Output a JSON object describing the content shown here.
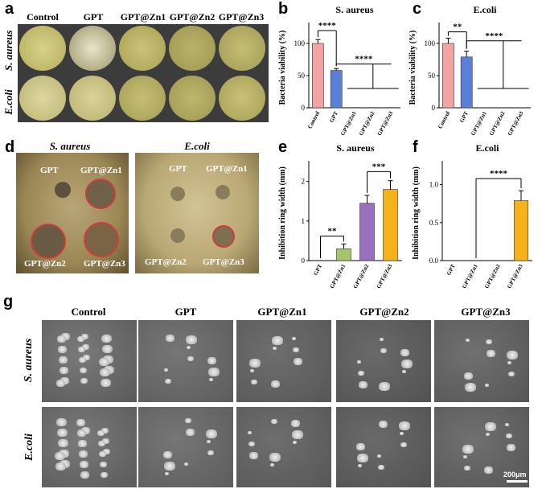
{
  "panel_letters": {
    "a": "a",
    "b": "b",
    "c": "c",
    "d": "d",
    "e": "e",
    "f": "f",
    "g": "g"
  },
  "panel_a": {
    "columns": [
      "Control",
      "GPT",
      "GPT@Zn1",
      "GPT@Zn2",
      "GPT@Zn3"
    ],
    "rows": [
      "S. aureus",
      "E.coli"
    ]
  },
  "panel_d": {
    "left_title": "S. aureus",
    "right_title": "E.coli",
    "left_labels": [
      "GPT",
      "GPT@Zn1",
      "GPT@Zn2",
      "GPT@Zn3"
    ],
    "right_labels": [
      "GPT",
      "GPT@Zn1",
      "GPT@Zn2",
      "GPT@Zn3"
    ]
  },
  "panel_g": {
    "columns": [
      "Control",
      "GPT",
      "GPT@Zn1",
      "GPT@Zn2",
      "GPT@Zn3"
    ],
    "rows": [
      "S. aureus",
      "E.coli"
    ],
    "scale_bar": "200μm"
  },
  "colors": {
    "control": "#f2a3a3",
    "gpt": "#5b7fd6",
    "zn1": "#a6c46a",
    "zn2": "#9a6fbf",
    "zn3": "#f5b21c"
  },
  "chart_data": [
    {
      "panel": "b",
      "type": "bar",
      "title": "S. aureus",
      "ylabel": "Bacteria viability (%)",
      "categories": [
        "Control",
        "GPT",
        "GPT@Zn1",
        "GPT@Zn2",
        "GPT@Zn3"
      ],
      "values": [
        100,
        58,
        0.5,
        0.5,
        0.5
      ],
      "errors": [
        6,
        3,
        0,
        0,
        0
      ],
      "ylim": [
        0,
        125
      ],
      "yticks": [
        0,
        50,
        100
      ],
      "annotations": [
        "****",
        "****"
      ]
    },
    {
      "panel": "c",
      "type": "bar",
      "title": "E.coli",
      "ylabel": "Bacteria viability (%)",
      "categories": [
        "Control",
        "GPT",
        "GPT@Zn1",
        "GPT@Zn2",
        "GPT@Zn3"
      ],
      "values": [
        100,
        79,
        0,
        0,
        0
      ],
      "errors": [
        8,
        9,
        0,
        0,
        0
      ],
      "ylim": [
        0,
        125
      ],
      "yticks": [
        0,
        50,
        100
      ],
      "annotations": [
        "**",
        "****"
      ]
    },
    {
      "panel": "e",
      "type": "bar",
      "title": "S. aureus",
      "ylabel": "Inhibition ring width (mm)",
      "categories": [
        "GPT",
        "GPT@Zn1",
        "GPT@Zn2",
        "GPT@Zn3"
      ],
      "values": [
        0,
        0.3,
        1.45,
        1.8
      ],
      "errors": [
        0,
        0.12,
        0.2,
        0.22
      ],
      "ylim": [
        0,
        2.4
      ],
      "yticks": [
        0,
        1,
        2
      ],
      "annotations": [
        "**",
        "***"
      ]
    },
    {
      "panel": "f",
      "type": "bar",
      "title": "E.coli",
      "ylabel": "Inhibition ring width (mm)",
      "categories": [
        "GPT",
        "GPT@Zn1",
        "GPT@Zn2",
        "GPT@Zn3"
      ],
      "values": [
        0,
        0,
        0,
        0.79
      ],
      "errors": [
        0,
        0,
        0,
        0.13
      ],
      "ylim": [
        0,
        1.25
      ],
      "yticks": [
        0.0,
        0.5,
        1.0
      ],
      "ytick_labels": [
        "0.0",
        "0.5",
        "1.0"
      ],
      "annotations": [
        "****"
      ]
    }
  ]
}
